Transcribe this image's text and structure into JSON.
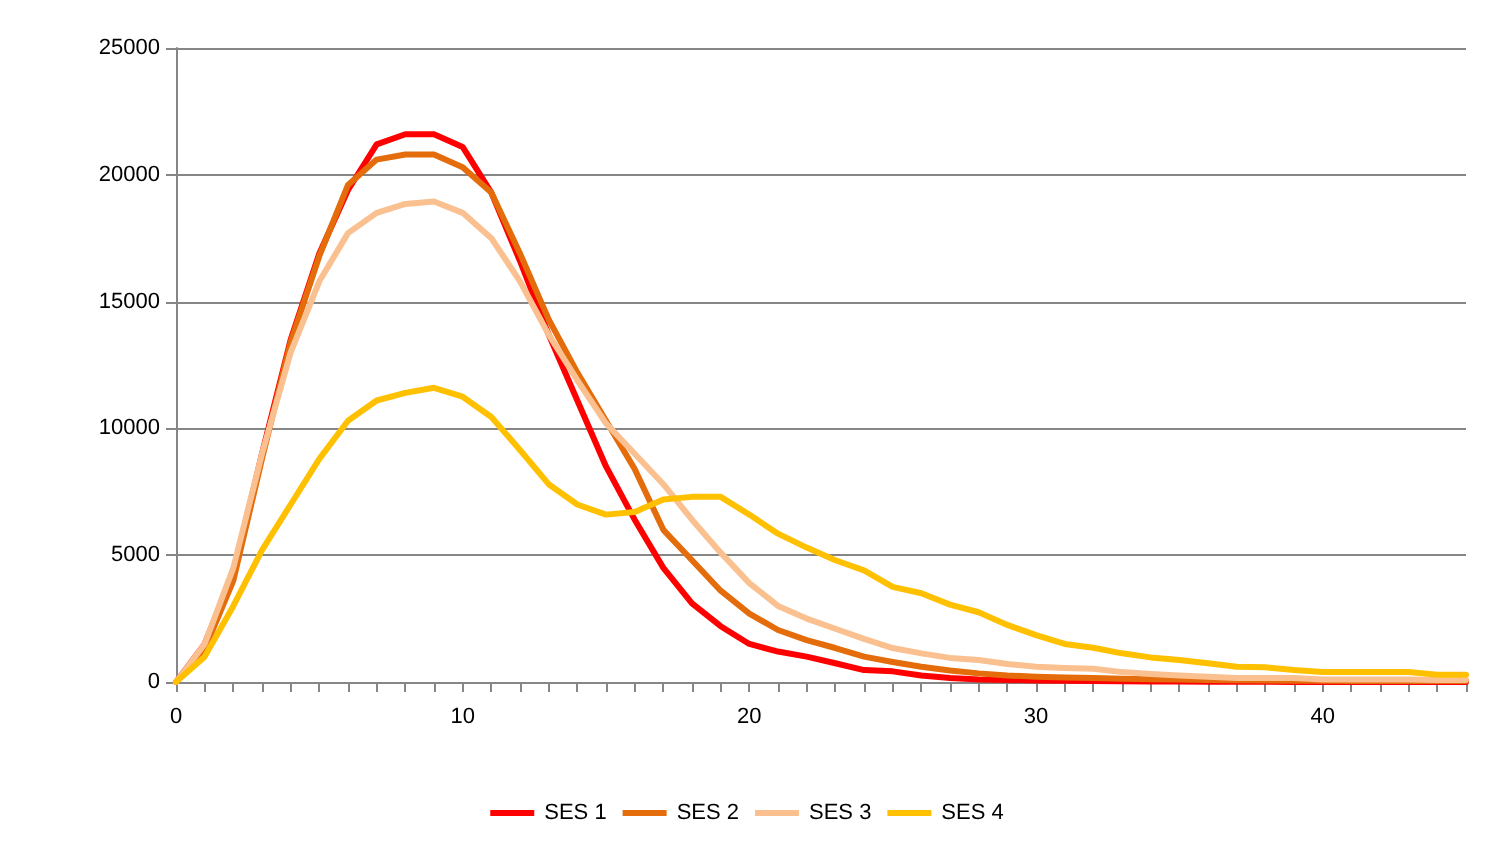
{
  "chart_data": {
    "type": "line",
    "categories": [
      "0",
      null,
      null,
      null,
      null,
      null,
      null,
      null,
      null,
      null,
      "10",
      null,
      null,
      null,
      null,
      null,
      null,
      null,
      null,
      null,
      "20",
      null,
      null,
      null,
      null,
      null,
      null,
      null,
      null,
      null,
      "30",
      null,
      null,
      null,
      null,
      null,
      null,
      null,
      null,
      null,
      "40",
      null,
      null,
      null,
      null,
      null
    ],
    "series": [
      {
        "name": "SES 1",
        "color": "#ff0000",
        "values": [
          0,
          1500,
          4300,
          9000,
          13500,
          16900,
          19400,
          21200,
          21600,
          21600,
          21100,
          19300,
          16600,
          13700,
          11100,
          8500,
          6400,
          4500,
          3100,
          2200,
          1500,
          1200,
          1000,
          740,
          470,
          420,
          260,
          160,
          100,
          80,
          60,
          50,
          40,
          30,
          20,
          20,
          10,
          10,
          10,
          0,
          0,
          0,
          0,
          0,
          0,
          0
        ]
      },
      {
        "name": "SES 2",
        "color": "#e46c0a",
        "values": [
          0,
          1300,
          4000,
          8800,
          13400,
          16800,
          19600,
          20600,
          20800,
          20800,
          20300,
          19300,
          16900,
          14300,
          12200,
          10300,
          8400,
          6000,
          4800,
          3600,
          2700,
          2050,
          1650,
          1340,
          1000,
          790,
          600,
          450,
          340,
          260,
          210,
          180,
          160,
          130,
          110,
          100,
          80,
          70,
          60,
          50,
          50,
          40,
          40,
          40,
          40,
          40
        ]
      },
      {
        "name": "SES 3",
        "color": "#fac090",
        "values": [
          0,
          1500,
          4500,
          9000,
          13000,
          15800,
          17700,
          18500,
          18850,
          18950,
          18500,
          17500,
          15800,
          13700,
          11900,
          10200,
          9000,
          7800,
          6400,
          5100,
          3900,
          3000,
          2500,
          2100,
          1700,
          1340,
          1130,
          950,
          870,
          710,
          600,
          550,
          520,
          390,
          320,
          260,
          210,
          160,
          160,
          160,
          100,
          100,
          100,
          100,
          80,
          80
        ]
      },
      {
        "name": "SES 4",
        "color": "#ffc000",
        "values": [
          0,
          1000,
          3000,
          5200,
          7000,
          8800,
          10300,
          11100,
          11400,
          11600,
          11250,
          10450,
          9150,
          7800,
          7000,
          6600,
          6700,
          7200,
          7300,
          7300,
          6600,
          5850,
          5300,
          4800,
          4400,
          3750,
          3500,
          3050,
          2750,
          2250,
          1850,
          1500,
          1350,
          1130,
          970,
          870,
          740,
          600,
          580,
          470,
          390,
          390,
          390,
          390,
          290,
          290
        ]
      }
    ],
    "ylim": [
      0,
      25000
    ],
    "yticks": [
      0,
      5000,
      10000,
      15000,
      20000,
      25000
    ],
    "grid": "y",
    "legend": "bottom",
    "marker": "none",
    "line_style": "solid"
  }
}
